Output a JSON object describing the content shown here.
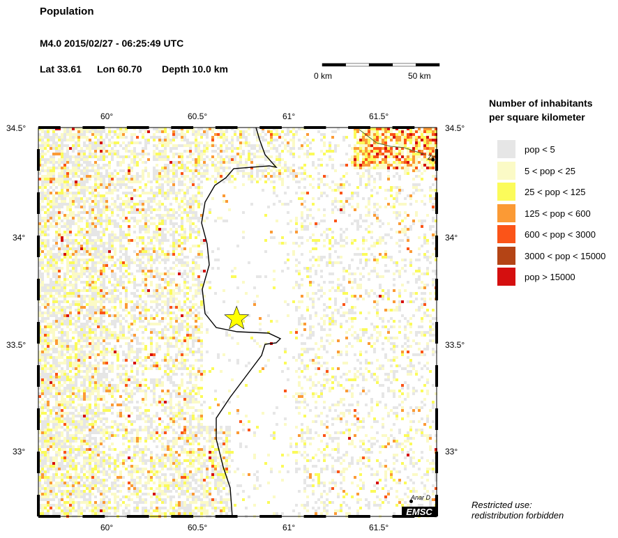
{
  "title": "Population",
  "event": {
    "headline": "M4.0  2015/02/27 - 06:25:49 UTC",
    "lat_label": "Lat 33.61",
    "lon_label": "Lon  60.70",
    "depth_label": "Depth  10.0 km",
    "magnitude": 4.0,
    "lat": 33.61,
    "lon": 60.7,
    "marker": "star-icon",
    "marker_color": "#ffff00"
  },
  "scale_bar": {
    "start_label": "0 km",
    "end_label": "50 km"
  },
  "map": {
    "lon_range": [
      59.61,
      61.8
    ],
    "lat_range": [
      32.69,
      34.5
    ],
    "lon_ticks": [
      "60°",
      "60.5°",
      "61°",
      "61.5°"
    ],
    "lat_ticks": [
      "34.5°",
      "34°",
      "33.5°",
      "33°"
    ],
    "cities": [
      {
        "name": "Zir",
        "lat": 34.35,
        "lon": 61.78
      },
      {
        "name": "Anar D",
        "lat": 32.76,
        "lon": 61.66
      }
    ],
    "logo": "EMSC"
  },
  "legend": {
    "title_line1": "Number of inhabitants",
    "title_line2": "per square kilometer",
    "items": [
      {
        "label": "pop < 5",
        "color": "#e6e6e6"
      },
      {
        "label": "5 < pop < 25",
        "color": "#fbfac6"
      },
      {
        "label": "25 < pop < 125",
        "color": "#fbfb5a"
      },
      {
        "label": "125 < pop < 600",
        "color": "#fb9a35"
      },
      {
        "label": "600 < pop < 3000",
        "color": "#fb5418"
      },
      {
        "label": "3000 < pop < 15000",
        "color": "#b44415"
      },
      {
        "label": "pop > 15000",
        "color": "#d50f0f"
      }
    ]
  },
  "note": {
    "line1": "Restricted use:",
    "line2": "redistribution forbidden"
  }
}
